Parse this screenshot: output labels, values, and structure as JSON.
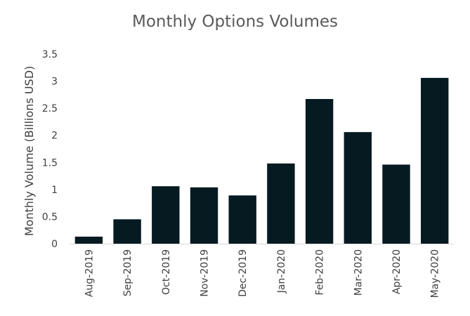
{
  "chart_data": {
    "type": "bar",
    "title": "Monthly Options Volumes",
    "xlabel": "",
    "ylabel": "Monthly Volume (Billions USD)",
    "categories": [
      "Aug-2019",
      "Sep-2019",
      "Oct-2019",
      "Nov-2019",
      "Dec-2019",
      "Jan-2020",
      "Feb-2020",
      "Mar-2020",
      "Apr-2020",
      "May-2020"
    ],
    "values": [
      0.13,
      0.45,
      1.06,
      1.04,
      0.89,
      1.48,
      2.67,
      2.06,
      1.46,
      3.06
    ],
    "ylim": [
      0,
      3.5
    ],
    "yticks": [
      "0",
      "0.5",
      "1",
      "1.5",
      "2",
      "2.5",
      "3",
      "3.5"
    ],
    "grid": false,
    "legend": "none",
    "bar_color": "#061a21"
  }
}
